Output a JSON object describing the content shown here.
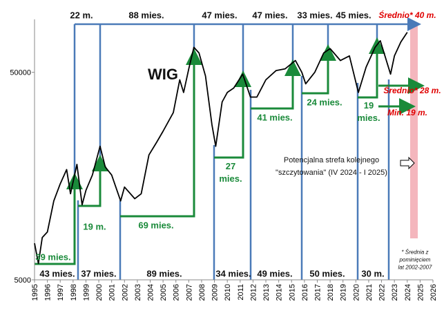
{
  "chart_data": {
    "type": "line",
    "title": "WIG",
    "log_scale": true,
    "color": "#000000",
    "x": [
      1995.0,
      1995.3,
      1995.6,
      1996.0,
      1996.5,
      1997.0,
      1997.5,
      1997.8,
      1998.3,
      1998.7,
      1999.0,
      1999.5,
      2000.1,
      2000.5,
      2001.0,
      2001.7,
      2002.0,
      2002.8,
      2003.3,
      2003.9,
      2004.5,
      2005.0,
      2005.8,
      2006.3,
      2006.6,
      2007.0,
      2007.4,
      2007.8,
      2008.3,
      2008.8,
      2009.1,
      2009.6,
      2010.0,
      2010.5,
      2011.2,
      2011.8,
      2012.3,
      2013.0,
      2013.8,
      2014.5,
      2015.3,
      2015.8,
      2016.1,
      2016.8,
      2017.5,
      2018.0,
      2018.8,
      2019.5,
      2020.2,
      2020.8,
      2021.5,
      2021.9,
      2022.7,
      2023.0,
      2023.5,
      2024.0
    ],
    "values": [
      7500,
      6000,
      8000,
      8500,
      12000,
      14500,
      17000,
      13000,
      18000,
      11500,
      13500,
      16000,
      22000,
      17500,
      16000,
      12000,
      14000,
      12300,
      13000,
      20000,
      23000,
      26000,
      32000,
      46000,
      40000,
      52000,
      66000,
      62000,
      48000,
      28000,
      22000,
      36000,
      40000,
      42000,
      49000,
      38000,
      38000,
      46000,
      51000,
      52000,
      57000,
      50000,
      44000,
      50000,
      62000,
      65000,
      57000,
      60000,
      40000,
      53000,
      66000,
      71000,
      49000,
      60000,
      70000,
      78000
    ],
    "xlim": [
      1995,
      2026
    ],
    "xticks": [
      1995,
      1996,
      1997,
      1998,
      1999,
      2000,
      2001,
      2002,
      2003,
      2004,
      2005,
      2006,
      2007,
      2008,
      2009,
      2010,
      2011,
      2012,
      2013,
      2014,
      2015,
      2016,
      2017,
      2018,
      2019,
      2020,
      2021,
      2022,
      2023,
      2024,
      2025,
      2026
    ],
    "ylim": [
      5000,
      90000
    ],
    "yticks": [
      5000,
      50000
    ],
    "bull_durations": [
      "22 m.",
      "88 mies.",
      "47 mies.",
      "47 mies.",
      "33 mies.",
      "45 mies."
    ],
    "bull_average": "Średnio* 40 m.",
    "bear_durations": [
      "43 mies.",
      "37 mies.",
      "89 mies.",
      "34 mies.",
      "49 mies.",
      "50 mies.",
      "30 m."
    ],
    "rise_durations": [
      "39 mies.",
      "19 m.",
      "69 mies.",
      "27 mies.",
      "41 mies.",
      "24 mies.",
      "19 mies."
    ],
    "rise_average": "Średnio* 28 m.",
    "rise_min": "Min. 19 m.",
    "zone_note": [
      "Potencjalna strefa kolejnego",
      "\"szczytowania\" (IV 2024 - I 2025)"
    ],
    "footnote": "* Średnia z pominięciem lat 2002-2007"
  }
}
